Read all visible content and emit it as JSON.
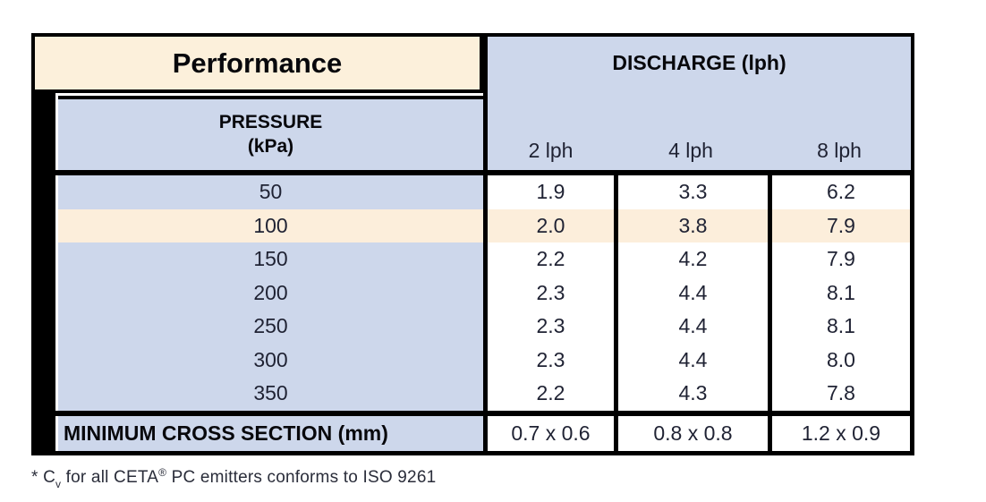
{
  "table": {
    "title": "Performance",
    "discharge": {
      "header": "DISCHARGE (lph)",
      "columns": [
        "2 lph",
        "4 lph",
        "8 lph"
      ]
    },
    "pressure_header": {
      "line1": "PRESSURE",
      "line2": "(kPa)"
    },
    "rows": [
      {
        "pressure": "50",
        "values": [
          "1.9",
          "3.3",
          "6.2"
        ],
        "highlighted": false
      },
      {
        "pressure": "100",
        "values": [
          "2.0",
          "3.8",
          "7.9"
        ],
        "highlighted": true
      },
      {
        "pressure": "150",
        "values": [
          "2.2",
          "4.2",
          "7.9"
        ],
        "highlighted": false
      },
      {
        "pressure": "200",
        "values": [
          "2.3",
          "4.4",
          "8.1"
        ],
        "highlighted": false
      },
      {
        "pressure": "250",
        "values": [
          "2.3",
          "4.4",
          "8.1"
        ],
        "highlighted": false
      },
      {
        "pressure": "300",
        "values": [
          "2.3",
          "4.4",
          "8.0"
        ],
        "highlighted": false
      },
      {
        "pressure": "350",
        "values": [
          "2.2",
          "4.3",
          "7.8"
        ],
        "highlighted": false
      }
    ],
    "min_cross_section": {
      "label": "MINIMUM CROSS SECTION (mm)",
      "values": [
        "0.7 x 0.6",
        "0.8 x 0.8",
        "1.2 x 0.9"
      ]
    }
  },
  "footnote": {
    "star_c": "* C",
    "subscript": "v",
    "mid": " for all CETA",
    "registered": "®",
    "tail": " PC emitters conforms to ISO 9261"
  },
  "colors": {
    "header_cream": "#FCF0DB",
    "highlight_cream": "#FCEEDB",
    "header_blue": "#CDD7EB",
    "cell_white": "#FFFFFF",
    "border_black": "#000000"
  }
}
